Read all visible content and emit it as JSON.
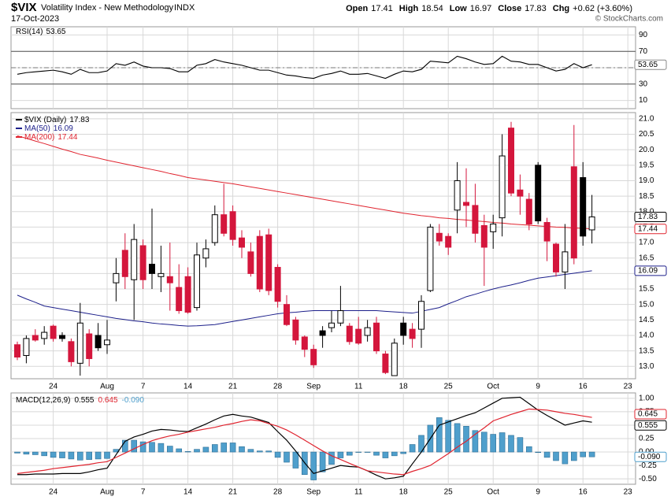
{
  "header": {
    "symbol": "$VIX",
    "name": "Volatility Index - New Methodology",
    "exchange": "INDX",
    "date": "17-Oct-2023",
    "open_label": "Open",
    "high_label": "High",
    "low_label": "Low",
    "close_label": "Close",
    "chg_label": "Chg",
    "chg": "+0.62 (+3.60%)",
    "source": "© StockCharts.com"
  },
  "chart_data": [
    {
      "type": "line",
      "title": "RSI(14)",
      "color": "#000000",
      "ylim": [
        0,
        100
      ],
      "yticks": [
        10,
        30,
        50,
        70,
        90
      ],
      "overbought": 70,
      "oversold": 30,
      "midline": 50,
      "grid": true,
      "values": [
        42,
        44,
        45,
        46,
        47,
        45,
        42,
        48,
        44,
        44,
        46,
        55,
        53,
        57,
        52,
        50,
        50,
        49,
        45,
        45,
        53,
        55,
        60,
        57,
        55,
        53,
        50,
        47,
        47,
        44,
        41,
        40,
        38,
        37,
        41,
        43,
        46,
        42,
        42,
        43,
        40,
        37,
        42,
        46,
        45,
        48,
        58,
        57,
        56,
        64,
        61,
        57,
        54,
        55,
        64,
        58,
        57,
        54,
        54,
        50,
        46,
        48,
        55,
        50,
        53.65,
        null,
        null,
        null,
        null
      ]
    },
    {
      "type": "candlestick",
      "title": "$VIX (Daily)",
      "up_color": "#ffffff",
      "down_color": "#d4163c",
      "down_up_color": "#000000",
      "ylim": [
        12.6,
        21.2
      ],
      "grid": true,
      "yticks": [
        {
          "value": 13,
          "label": "13.0"
        },
        13.5,
        {
          "value": 14,
          "label": "14.0"
        },
        14.5,
        {
          "value": 15,
          "label": "15.0"
        },
        15.5,
        {
          "value": 16,
          "label": "16.0"
        },
        16.5,
        {
          "value": 17,
          "label": "17.0"
        },
        17.5,
        {
          "value": 18,
          "label": "18.0"
        },
        18.5,
        {
          "value": 19,
          "label": "19.0"
        },
        19.5,
        {
          "value": 20,
          "label": "20.0"
        },
        20.5,
        {
          "value": 21,
          "label": "21.0"
        }
      ],
      "categories": [
        null,
        null,
        null,
        null,
        "24",
        null,
        null,
        null,
        null,
        null,
        "Aug",
        null,
        null,
        null,
        "7",
        null,
        null,
        null,
        null,
        "14",
        null,
        null,
        null,
        null,
        "21",
        null,
        null,
        null,
        null,
        "28",
        null,
        null,
        null,
        "Sep",
        null,
        null,
        null,
        null,
        "11",
        null,
        null,
        null,
        null,
        "18",
        null,
        null,
        null,
        null,
        "25",
        null,
        null,
        null,
        null,
        "Oct",
        null,
        null,
        null,
        null,
        "9",
        null,
        null,
        null,
        null,
        "16",
        null,
        null,
        null,
        null,
        "23"
      ],
      "open": [
        13.7,
        13.35,
        14.0,
        13.9,
        14.3,
        14.0,
        13.8,
        13.1,
        14.05,
        14.0,
        13.7,
        15.7,
        16.75,
        15.8,
        16.9,
        16.3,
        15.9,
        15.9,
        15.55,
        15.9,
        14.9,
        16.5,
        17.0,
        17.9,
        18.0,
        17.15,
        16.7,
        17.2,
        17.25,
        16.2,
        15.0,
        14.5,
        13.95,
        13.55,
        14.15,
        14.25,
        14.4,
        14.3,
        14.2,
        14.0,
        14.4,
        13.4,
        12.7,
        14.4,
        14.2,
        14.2,
        15.45,
        17.3,
        17.2,
        18.05,
        18.3,
        18.2,
        17.55,
        17.35,
        17.8,
        20.7,
        18.7,
        18.4,
        19.5,
        17.65,
        16.95,
        16.05,
        19.45,
        19.1,
        17.41,
        null,
        null,
        null,
        null
      ],
      "high": [
        13.8,
        14.0,
        14.2,
        14.3,
        14.35,
        14.1,
        13.9,
        15.05,
        14.2,
        14.4,
        14.5,
        16.5,
        17.3,
        17.6,
        17.1,
        18.1,
        16.9,
        17.0,
        16.3,
        16.2,
        17.0,
        17.1,
        18.2,
        18.9,
        18.2,
        17.4,
        17.0,
        17.4,
        17.45,
        16.3,
        15.3,
        14.6,
        14.0,
        13.7,
        14.3,
        14.8,
        15.6,
        14.4,
        14.6,
        14.5,
        14.6,
        13.5,
        13.9,
        14.6,
        14.4,
        15.3,
        17.6,
        17.6,
        17.3,
        19.6,
        19.4,
        18.9,
        17.9,
        17.9,
        20.5,
        20.9,
        19.2,
        18.6,
        19.6,
        17.8,
        17.0,
        17.6,
        20.8,
        19.6,
        18.54,
        null,
        null,
        null,
        null
      ],
      "low": [
        13.2,
        13.1,
        13.8,
        13.7,
        13.8,
        13.8,
        13.0,
        12.7,
        13.0,
        13.5,
        13.4,
        15.1,
        15.5,
        14.5,
        15.5,
        15.5,
        15.4,
        14.8,
        14.7,
        14.7,
        14.8,
        16.2,
        16.9,
        17.2,
        16.9,
        16.5,
        15.9,
        15.4,
        15.3,
        14.9,
        14.3,
        13.7,
        13.3,
        12.95,
        13.6,
        14.1,
        14.3,
        13.7,
        13.7,
        13.8,
        13.4,
        12.75,
        12.7,
        13.7,
        13.6,
        13.6,
        15.4,
        16.9,
        16.6,
        17.3,
        17.5,
        17.0,
        15.6,
        16.8,
        17.2,
        18.5,
        17.9,
        17.4,
        17.6,
        16.4,
        15.9,
        15.5,
        16.3,
        16.9,
        16.97,
        null,
        null,
        null,
        null
      ],
      "close": [
        13.3,
        13.9,
        13.85,
        14.1,
        13.9,
        13.9,
        13.15,
        14.4,
        13.25,
        13.6,
        13.85,
        16.0,
        15.9,
        17.1,
        15.8,
        16.0,
        16.0,
        15.7,
        14.8,
        14.75,
        16.6,
        16.8,
        17.9,
        17.3,
        17.1,
        16.85,
        16.0,
        15.5,
        15.45,
        15.1,
        14.35,
        13.85,
        13.55,
        13.05,
        14.0,
        14.4,
        14.8,
        13.8,
        13.75,
        14.25,
        13.5,
        12.8,
        13.75,
        14.0,
        13.9,
        15.1,
        17.5,
        17.05,
        16.85,
        19.0,
        18.2,
        17.3,
        16.85,
        17.6,
        19.8,
        18.6,
        18.5,
        17.6,
        17.7,
        17.05,
        16.05,
        16.7,
        16.5,
        17.21,
        17.83,
        null,
        null,
        null,
        null
      ],
      "overlays": [
        {
          "name": "MA(50)",
          "color": "#1c1f8a",
          "values": [
            15.3,
            15.18,
            15.07,
            14.95,
            14.9,
            14.85,
            14.8,
            14.75,
            14.7,
            14.65,
            14.6,
            14.55,
            14.51,
            14.47,
            14.44,
            14.4,
            14.37,
            14.35,
            14.32,
            14.3,
            14.31,
            14.33,
            14.35,
            14.4,
            14.45,
            14.5,
            14.55,
            14.6,
            14.65,
            14.7,
            14.73,
            14.75,
            14.78,
            14.8,
            14.8,
            14.8,
            14.8,
            14.8,
            14.8,
            14.8,
            14.8,
            14.78,
            14.76,
            14.74,
            14.72,
            14.78,
            14.84,
            14.9,
            15.02,
            15.13,
            15.25,
            15.33,
            15.42,
            15.5,
            15.57,
            15.63,
            15.7,
            15.78,
            15.85,
            15.89,
            15.93,
            15.97,
            16.01,
            16.05,
            16.09,
            null,
            null,
            null,
            null
          ]
        },
        {
          "name": "MA(200)",
          "color": "#e0242f",
          "values": [
            20.45,
            20.37,
            20.28,
            20.2,
            20.11,
            20.02,
            19.94,
            19.85,
            19.79,
            19.73,
            19.66,
            19.6,
            19.54,
            19.48,
            19.42,
            19.36,
            19.3,
            19.23,
            19.17,
            19.1,
            19.06,
            19.02,
            18.98,
            18.94,
            18.9,
            18.85,
            18.8,
            18.75,
            18.7,
            18.65,
            18.6,
            18.55,
            18.5,
            18.45,
            18.4,
            18.35,
            18.3,
            18.25,
            18.2,
            18.15,
            18.1,
            18.05,
            18.0,
            17.95,
            17.91,
            17.87,
            17.84,
            17.8,
            17.78,
            17.75,
            17.73,
            17.7,
            17.68,
            17.65,
            17.63,
            17.6,
            17.58,
            17.56,
            17.54,
            17.52,
            17.5,
            17.49,
            17.47,
            17.46,
            17.44,
            null,
            null,
            null,
            null
          ]
        }
      ]
    },
    {
      "type": "macd",
      "title": "MACD(12,26,9)",
      "ylim": [
        -0.6,
        1.1
      ],
      "grid": true,
      "yticks": [
        {
          "value": -0.5,
          "label": "-0.50"
        },
        -0.25,
        {
          "value": 0,
          "label": "0.00"
        },
        0.25,
        {
          "value": 0.5,
          "label": "0.50"
        },
        0.75,
        {
          "value": 1,
          "label": "1.00"
        }
      ],
      "categories": [
        null,
        null,
        null,
        null,
        "24",
        null,
        null,
        null,
        null,
        null,
        "Aug",
        null,
        null,
        null,
        "7",
        null,
        null,
        null,
        null,
        "14",
        null,
        null,
        null,
        null,
        "21",
        null,
        null,
        null,
        null,
        "28",
        null,
        null,
        null,
        "Sep",
        null,
        null,
        null,
        null,
        "11",
        null,
        null,
        null,
        null,
        "18",
        null,
        null,
        null,
        null,
        "25",
        null,
        null,
        null,
        null,
        "Oct",
        null,
        null,
        null,
        null,
        "9",
        null,
        null,
        null,
        null,
        "16",
        null,
        null,
        null,
        null,
        "23"
      ],
      "series": [
        {
          "style": "line",
          "color": "#000000",
          "values": [
            -0.42,
            -0.42,
            -0.41,
            -0.41,
            -0.41,
            -0.4,
            -0.4,
            -0.4,
            -0.37,
            -0.33,
            -0.3,
            -0.05,
            0.2,
            0.28,
            0.33,
            0.39,
            0.42,
            0.41,
            0.39,
            0.38,
            0.45,
            0.52,
            0.6,
            0.67,
            0.7,
            0.67,
            0.65,
            0.6,
            0.55,
            0.38,
            0.22,
            0.02,
            -0.2,
            -0.4,
            -0.35,
            -0.3,
            -0.25,
            -0.27,
            -0.28,
            -0.35,
            -0.43,
            -0.5,
            -0.48,
            -0.45,
            -0.22,
            0.0,
            0.25,
            0.5,
            0.56,
            0.62,
            0.68,
            0.73,
            0.82,
            0.91,
            1.0,
            1.01,
            1.02,
            0.9,
            0.78,
            0.68,
            0.59,
            0.5,
            0.54,
            0.58,
            0.555,
            null,
            null,
            null,
            null
          ]
        },
        {
          "style": "line",
          "color": "#e0242f",
          "values": [
            -0.4,
            -0.38,
            -0.36,
            -0.34,
            -0.31,
            -0.29,
            -0.27,
            -0.25,
            -0.23,
            -0.2,
            -0.18,
            -0.1,
            -0.02,
            0.06,
            0.14,
            0.21,
            0.26,
            0.3,
            0.33,
            0.37,
            0.4,
            0.43,
            0.46,
            0.5,
            0.53,
            0.57,
            0.6,
            0.58,
            0.53,
            0.48,
            0.41,
            0.32,
            0.22,
            0.12,
            0.02,
            -0.07,
            -0.14,
            -0.21,
            -0.28,
            -0.35,
            -0.37,
            -0.39,
            -0.41,
            -0.42,
            -0.36,
            -0.31,
            -0.25,
            -0.14,
            -0.03,
            0.09,
            0.2,
            0.33,
            0.45,
            0.58,
            0.64,
            0.7,
            0.75,
            0.8,
            0.79,
            0.78,
            0.75,
            0.72,
            0.7,
            0.67,
            0.645,
            null,
            null,
            null,
            null
          ]
        },
        {
          "style": "bar",
          "color": "#4f9fcc",
          "last_label": "-0.090",
          "values": [
            -0.02,
            -0.04,
            -0.05,
            -0.07,
            -0.1,
            -0.11,
            -0.13,
            -0.15,
            -0.14,
            -0.13,
            -0.12,
            0.05,
            0.22,
            0.22,
            0.19,
            0.18,
            0.16,
            0.11,
            0.06,
            0.01,
            0.05,
            0.09,
            0.14,
            0.17,
            0.17,
            0.1,
            0.05,
            0.02,
            0.02,
            -0.1,
            -0.19,
            -0.3,
            -0.42,
            -0.52,
            -0.37,
            -0.23,
            -0.11,
            -0.06,
            0.0,
            0.0,
            -0.06,
            -0.11,
            -0.07,
            -0.03,
            0.14,
            0.31,
            0.5,
            0.64,
            0.59,
            0.53,
            0.48,
            0.4,
            0.37,
            0.33,
            0.36,
            0.31,
            0.27,
            0.1,
            -0.01,
            -0.1,
            -0.16,
            -0.22,
            -0.16,
            -0.09,
            -0.09,
            null,
            null,
            null,
            null
          ]
        }
      ]
    }
  ]
}
